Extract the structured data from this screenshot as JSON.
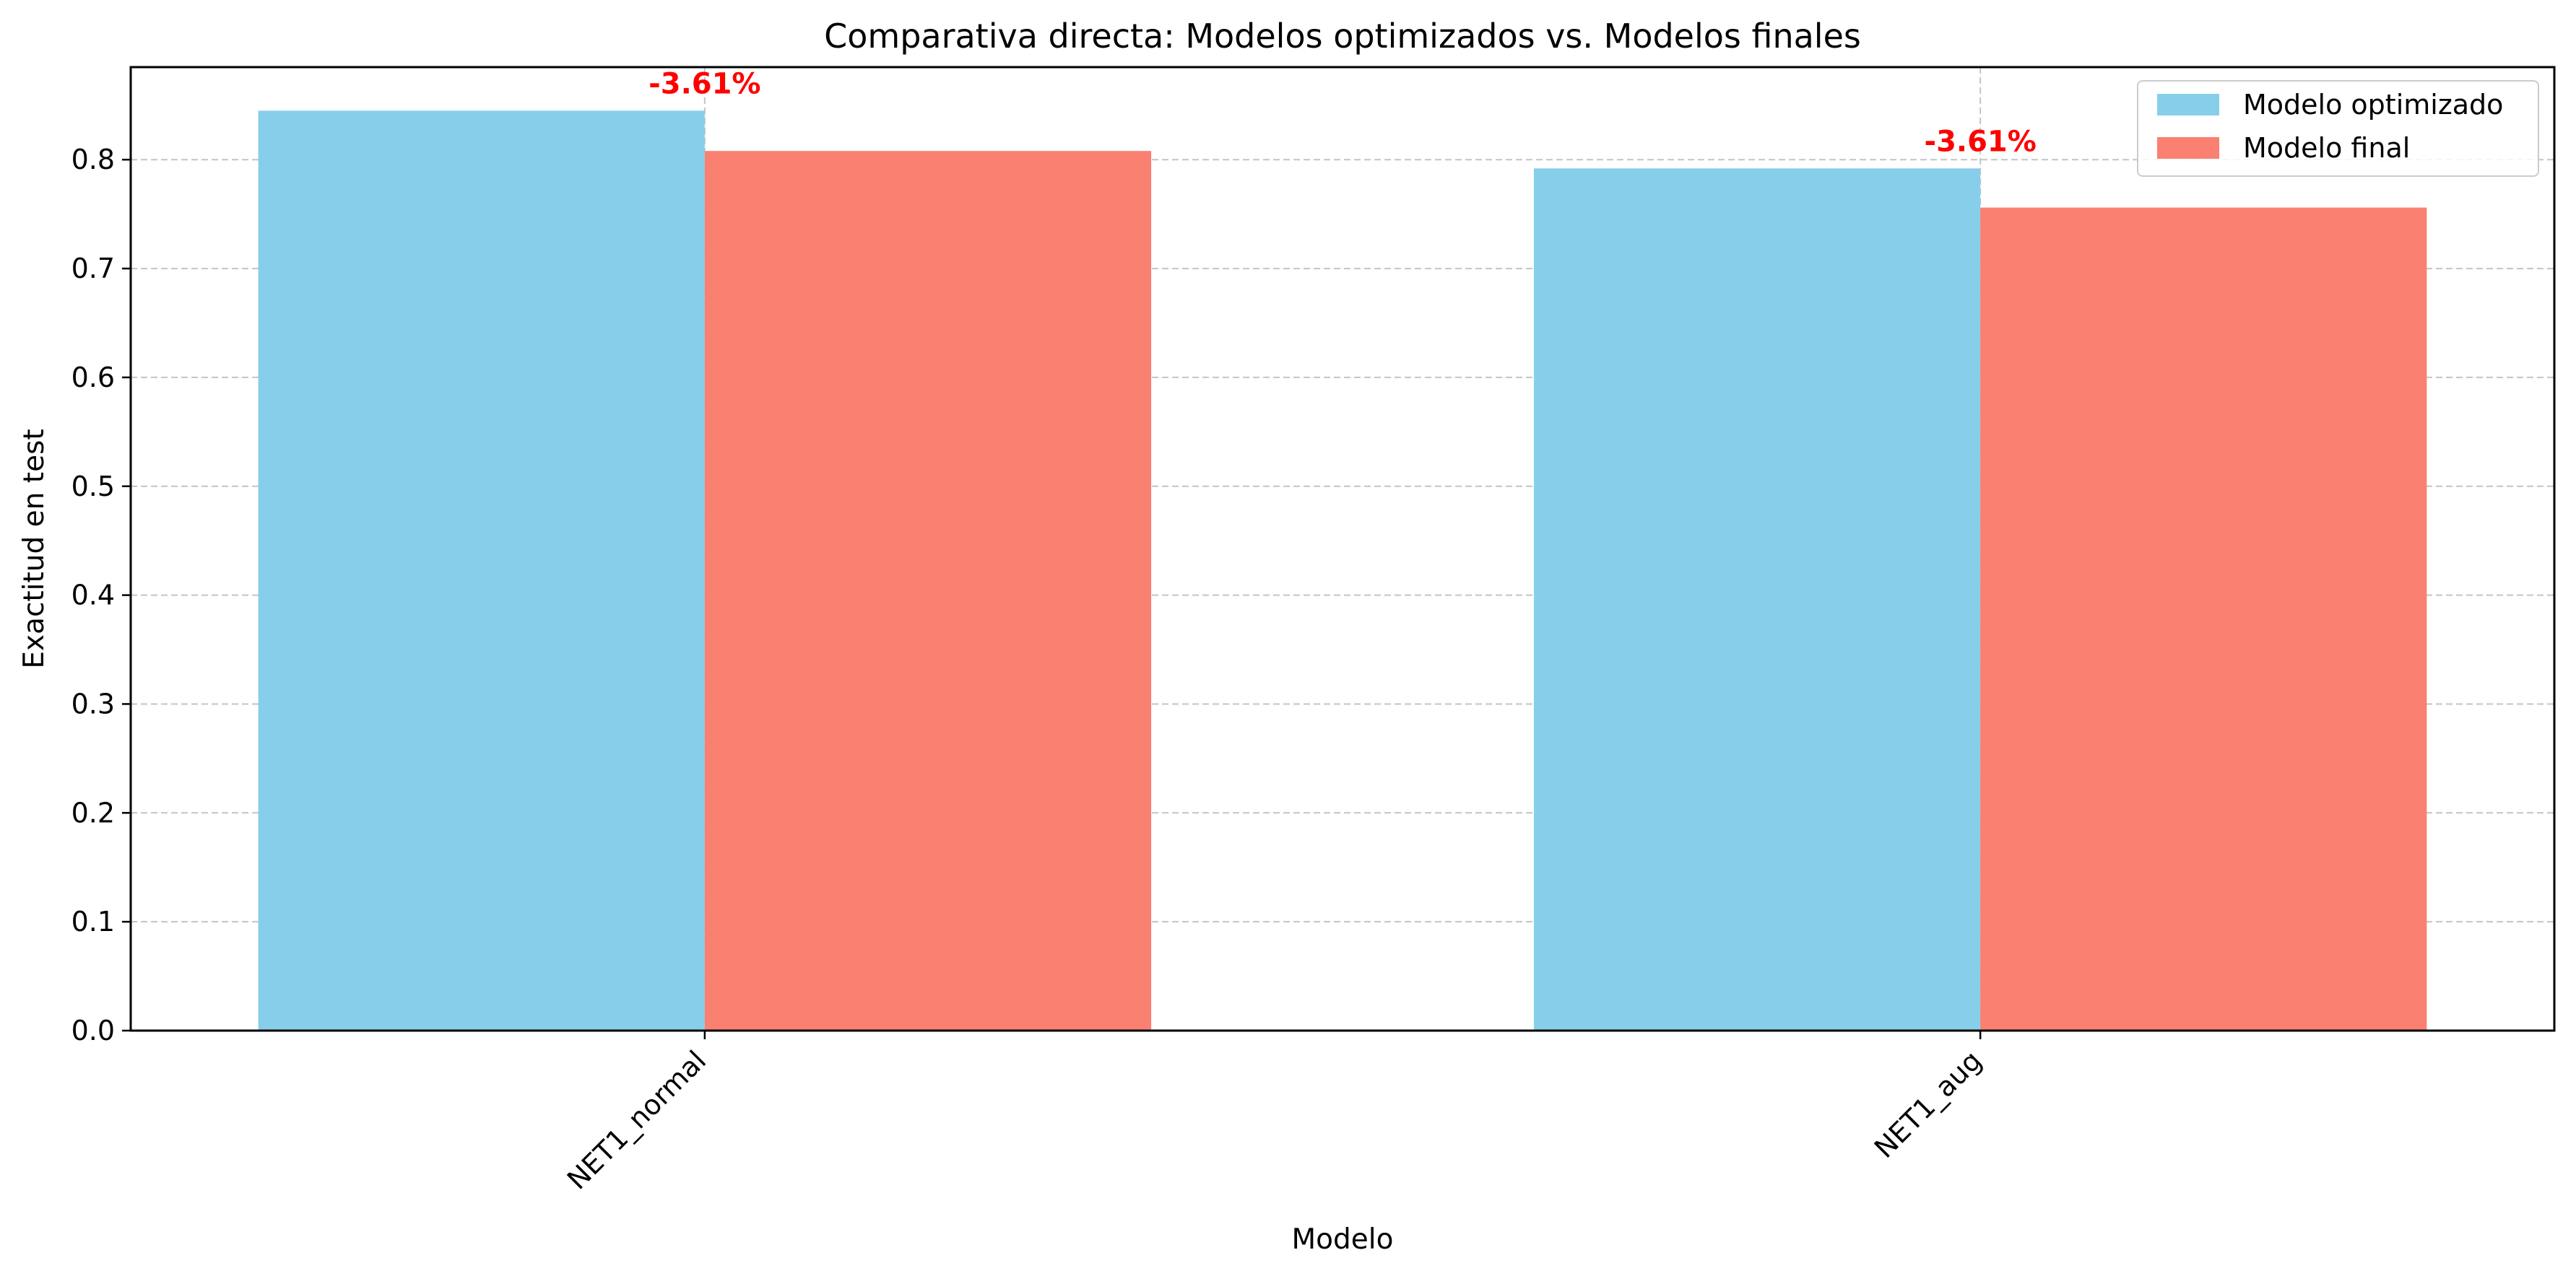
{
  "chart_data": {
    "type": "bar",
    "title": "Comparativa directa: Modelos optimizados vs. Modelos finales",
    "xlabel": "Modelo",
    "ylabel": "Exactitud en test",
    "categories": [
      "NET1_normal",
      "NET1_aug"
    ],
    "series": [
      {
        "name": "Modelo optimizado",
        "color": "#87CEEB",
        "values": [
          0.845,
          0.792
        ]
      },
      {
        "name": "Modelo final",
        "color": "#FA8072",
        "values": [
          0.808,
          0.756
        ]
      }
    ],
    "annotations": [
      "-3.61%",
      "-3.61%"
    ],
    "annotation_color": "#ff0000",
    "ylim": [
      0,
      0.885
    ],
    "yticks": [
      0.0,
      0.1,
      0.2,
      0.3,
      0.4,
      0.5,
      0.6,
      0.7,
      0.8
    ],
    "ytick_labels": [
      "0.0",
      "0.1",
      "0.2",
      "0.3",
      "0.4",
      "0.5",
      "0.6",
      "0.7",
      "0.8"
    ],
    "grid": true,
    "grid_axis": "both",
    "grid_style": "dashed",
    "legend_position": "upper right"
  }
}
